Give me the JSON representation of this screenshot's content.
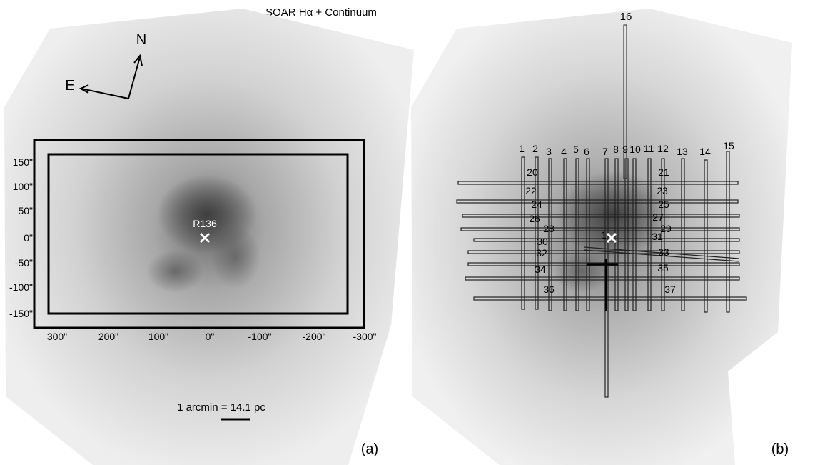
{
  "figure": {
    "title": "SOAR Hα + Continuum",
    "panel_a": {
      "label": "(a)",
      "compass": {
        "north": "N",
        "east": "E"
      },
      "target_label": "R136",
      "scale_bar_label": "1 arcmin = 14.1 pc",
      "y_ticks": [
        "150\"",
        "100\"",
        "50\"",
        "0\"",
        "-50\"",
        "-100\"",
        "-150\""
      ],
      "x_ticks": [
        "300\"",
        "200\"",
        "100\"",
        "0\"",
        "-100\"",
        "-200\"",
        "-300\""
      ]
    },
    "panel_b": {
      "label": "(b)",
      "vertical_slit_labels": [
        "1",
        "2",
        "3",
        "4",
        "5",
        "6",
        "7",
        "8",
        "9",
        "10",
        "11",
        "12",
        "13",
        "14",
        "15"
      ],
      "long_slit_label": "16",
      "horizontal_slit_labels": [
        "20",
        "21",
        "22",
        "23",
        "24",
        "25",
        "26",
        "27",
        "28",
        "29",
        "30",
        "31",
        "32",
        "33",
        "34",
        "35",
        "36",
        "37"
      ],
      "center_label": "1"
    }
  },
  "colors": {
    "nebula_light": "#ebebeb",
    "nebula_dark": "#4a4a4a",
    "marker": "#ffffff",
    "ink": "#000000"
  }
}
